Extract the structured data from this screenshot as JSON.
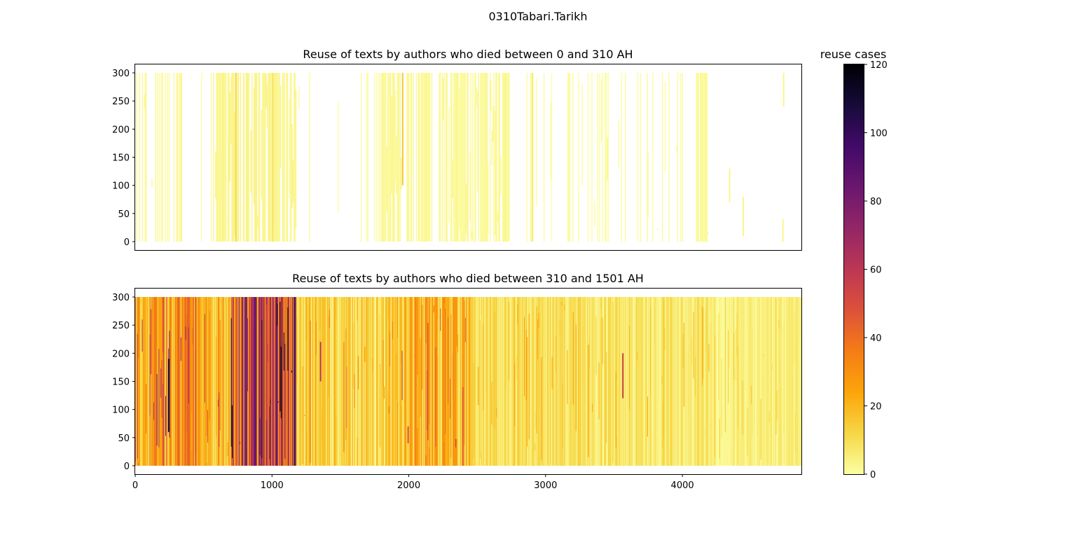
{
  "figure": {
    "suptitle": "0310Tabari.Tarikh"
  },
  "chart_data": [
    {
      "type": "heatmap",
      "title": "Reuse of texts by authors who died between 0 and 310 AH",
      "xlabel": "",
      "ylabel": "",
      "xlim": [
        0,
        4870
      ],
      "ylim": [
        -15,
        315
      ],
      "yticks": [
        0,
        50,
        100,
        150,
        200,
        250,
        300
      ],
      "xtick_labels_shown": false,
      "band_y_range": [
        0,
        300
      ],
      "dense_segments": [
        {
          "x": [
            0,
            350
          ],
          "density": 0.4,
          "value": 2
        },
        {
          "x": [
            440,
            560
          ],
          "density": 0.12,
          "value": 1
        },
        {
          "x": [
            570,
            1180
          ],
          "density": 0.85,
          "value": 3
        },
        {
          "x": [
            1180,
            1780
          ],
          "density": 0.07,
          "value": 1
        },
        {
          "x": [
            1780,
            2170
          ],
          "density": 0.85,
          "value": 2
        },
        {
          "x": [
            2170,
            2220
          ],
          "density": 0.1,
          "value": 1
        },
        {
          "x": [
            2220,
            2740
          ],
          "density": 0.8,
          "value": 2
        },
        {
          "x": [
            2740,
            3160
          ],
          "density": 0.12,
          "value": 1
        },
        {
          "x": [
            3160,
            3460
          ],
          "density": 0.35,
          "value": 1
        },
        {
          "x": [
            3460,
            3780
          ],
          "density": 0.25,
          "value": 1
        },
        {
          "x": [
            3780,
            4000
          ],
          "density": 0.12,
          "value": 1
        },
        {
          "x": [
            4100,
            4190
          ],
          "density": 0.9,
          "value": 2
        }
      ],
      "notable_lines": [
        {
          "x": 730,
          "y": [
            0,
            300
          ],
          "value": 12
        },
        {
          "x": 1000,
          "y": [
            0,
            300
          ],
          "value": 8
        },
        {
          "x": 1950,
          "y": [
            100,
            300
          ],
          "value": 16
        },
        {
          "x": 2900,
          "y": [
            0,
            300
          ],
          "value": 6
        },
        {
          "x": 4340,
          "y": [
            70,
            130
          ],
          "value": 3
        },
        {
          "x": 4440,
          "y": [
            10,
            80
          ],
          "value": 3
        },
        {
          "x": 4730,
          "y": [
            0,
            40
          ],
          "value": 3
        },
        {
          "x": 4735,
          "y": [
            240,
            300
          ],
          "value": 3
        }
      ]
    },
    {
      "type": "heatmap",
      "title": "Reuse of texts by authors who died between 310 and 1501 AH",
      "xlabel": "",
      "ylabel": "",
      "xlim": [
        0,
        4870
      ],
      "ylim": [
        -15,
        315
      ],
      "xticks": [
        0,
        1000,
        2000,
        3000,
        4000
      ],
      "yticks": [
        0,
        50,
        100,
        150,
        200,
        250,
        300
      ],
      "band_y_range": [
        0,
        300
      ],
      "dense_segments": [
        {
          "x": [
            0,
            150
          ],
          "base": 18,
          "spread": 30
        },
        {
          "x": [
            150,
            450
          ],
          "base": 22,
          "spread": 40
        },
        {
          "x": [
            450,
            700
          ],
          "base": 14,
          "spread": 30
        },
        {
          "x": [
            700,
            1180
          ],
          "base": 38,
          "spread": 70
        },
        {
          "x": [
            1180,
            1900
          ],
          "base": 8,
          "spread": 22
        },
        {
          "x": [
            1900,
            2450
          ],
          "base": 14,
          "spread": 30
        },
        {
          "x": [
            2450,
            3400
          ],
          "base": 6,
          "spread": 14
        },
        {
          "x": [
            3400,
            4200
          ],
          "base": 5,
          "spread": 12
        },
        {
          "x": [
            4200,
            4870
          ],
          "base": 3,
          "spread": 8
        }
      ],
      "notable_lines": [
        {
          "x": 240,
          "y": [
            60,
            190
          ],
          "value": 110
        },
        {
          "x": 1160,
          "y": [
            0,
            300
          ],
          "value": 100
        },
        {
          "x": 1350,
          "y": [
            150,
            220
          ],
          "value": 60
        },
        {
          "x": 2390,
          "y": [
            0,
            140
          ],
          "value": 45
        },
        {
          "x": 3560,
          "y": [
            120,
            200
          ],
          "value": 55
        },
        {
          "x": 1990,
          "y": [
            40,
            70
          ],
          "value": 50
        }
      ]
    }
  ],
  "colorbar": {
    "label": "reuse cases",
    "min": 0,
    "max": 120,
    "ticks": [
      0,
      20,
      40,
      60,
      80,
      100,
      120
    ],
    "colormap": "inferno_r",
    "stops": [
      "#fcffa4",
      "#f6d746",
      "#fca50a",
      "#f57d15",
      "#dd513a",
      "#bc3754",
      "#932667",
      "#6a176e",
      "#420a68",
      "#160b39",
      "#000004"
    ]
  }
}
